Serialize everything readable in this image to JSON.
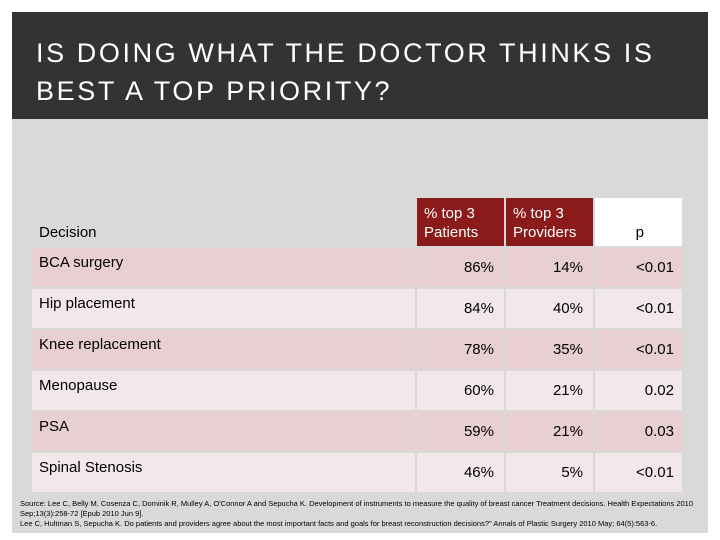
{
  "header": {
    "title_line1": "IS DOING WHAT THE DOCTOR THINKS IS",
    "title_line2": "BEST A TOP PRIORITY?"
  },
  "table": {
    "columns": {
      "decision": "Decision",
      "patients_line1": "% top 3",
      "patients_line2": "Patients",
      "providers_line1": "% top 3",
      "providers_line2": "Providers",
      "p": "p"
    },
    "rows": [
      {
        "decision": "BCA surgery",
        "patients": "86%",
        "providers": "14%",
        "p": "<0.01"
      },
      {
        "decision": "Hip placement",
        "patients": "84%",
        "providers": "40%",
        "p": "<0.01"
      },
      {
        "decision": "Knee replacement",
        "patients": "78%",
        "providers": "35%",
        "p": "<0.01"
      },
      {
        "decision": "Menopause",
        "patients": "60%",
        "providers": "21%",
        "p": "0.02"
      },
      {
        "decision": "PSA",
        "patients": "59%",
        "providers": "21%",
        "p": "0.03"
      },
      {
        "decision": "Spinal Stenosis",
        "patients": "46%",
        "providers": "5%",
        "p": "<0.01"
      }
    ]
  },
  "source": {
    "line1": "Source: Lee C, Belly M, Cosenza C, Dominik R, Mulley A, O'Connor A and Sepucha K. Development of instruments to measure the quality of breast cancer Treatment decisions. Health Expectations 2010 Sep;13(3):258-72 [Epub 2010 Jun 9].",
    "line2": "Lee C, Hultman S, Sepucha K. Do patients and providers agree about the most important facts and goals for breast reconstruction decisions?\" Annals of Plastic Surgery 2010 May; 64(5):563-6."
  },
  "colors": {
    "title_bar": "#333333",
    "header_accent": "#8b1a1a",
    "row_odd": "#e8cfd1",
    "row_even": "#f3e8e9",
    "panel": "#d9d9d9"
  }
}
